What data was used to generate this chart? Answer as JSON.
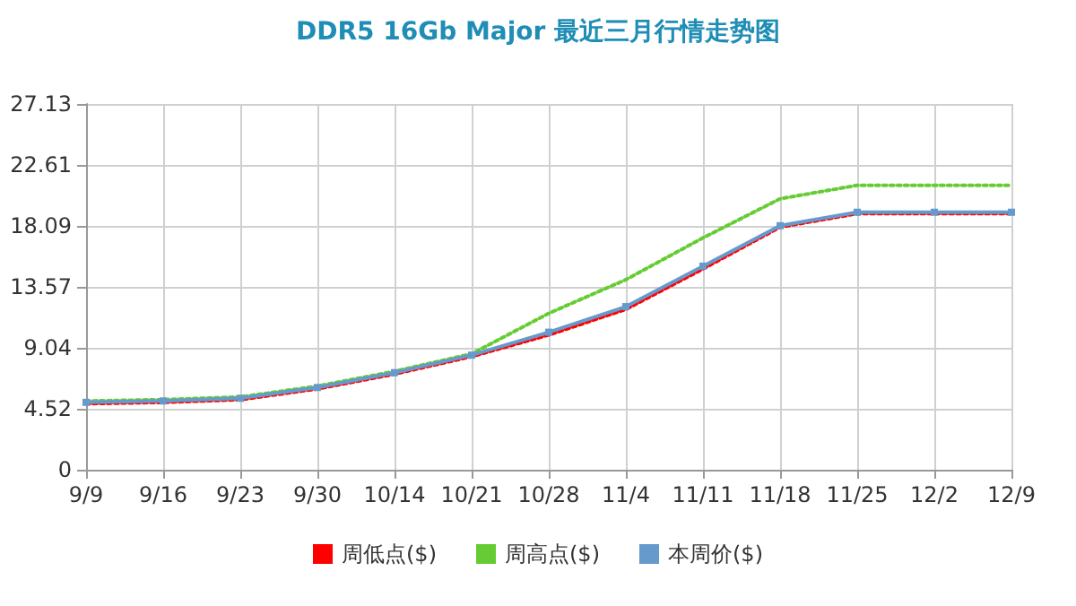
{
  "chart_data": {
    "type": "line",
    "title": "DDR5 16Gb Major 最近三月行情走势图",
    "categories": [
      "9/9",
      "9/16",
      "9/23",
      "9/30",
      "10/14",
      "10/21",
      "10/28",
      "11/4",
      "11/11",
      "11/18",
      "11/25",
      "12/2",
      "12/9"
    ],
    "series": [
      {
        "name": "周低点($)",
        "color": "#ff0000",
        "line_style": "dotted",
        "marker": "none",
        "values": [
          4.9,
          5.0,
          5.2,
          6.0,
          7.1,
          8.4,
          10.0,
          11.9,
          14.9,
          18.0,
          19.0,
          19.0,
          19.0
        ]
      },
      {
        "name": "周高点($)",
        "color": "#66cc33",
        "line_style": "dotted",
        "marker": "none",
        "values": [
          5.1,
          5.2,
          5.4,
          6.2,
          7.3,
          8.6,
          11.6,
          14.1,
          17.2,
          20.1,
          21.1,
          21.1,
          21.1
        ]
      },
      {
        "name": "本周价($)",
        "color": "#6699cc",
        "line_style": "solid",
        "marker": "square",
        "values": [
          5.0,
          5.1,
          5.3,
          6.1,
          7.2,
          8.5,
          10.2,
          12.1,
          15.1,
          18.1,
          19.1,
          19.1,
          19.1
        ]
      }
    ],
    "ylim": [
      0,
      27.13
    ],
    "yticks": [
      0,
      4.52,
      9.04,
      13.57,
      18.09,
      22.61,
      27.13
    ],
    "grid": true,
    "legend": "bottom"
  }
}
